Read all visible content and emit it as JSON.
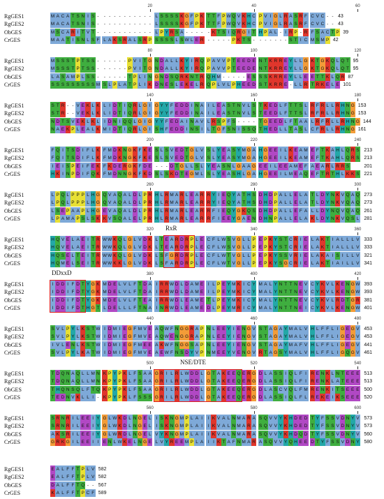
{
  "sequence_names": [
    "RgGES1",
    "RgGES2",
    "ObGES",
    "CrGES"
  ],
  "blocks": [
    {
      "ruler": [
        "20",
        "40",
        "60"
      ],
      "rows": [
        "MACATSNIS-----------LSSSSKGFPKTTFPWQVKHCPVIGLRASRFCVC--",
        "MACATSNIS-----------LSSSSKGFPKTTFPWQVKHCPVIGLRASRFCVC--",
        "MSCARITVT-----------LPYRSA-----KTSIQRGITHPAL-IRP-RFSACTP",
        "MAATISNLSFLAKSRALSRPSSSSLSWLER-----PKTS-------STICMSMP"
      ],
      "ends": [
        "43",
        "43",
        "39",
        "42"
      ]
    },
    {
      "ruler": [
        "80",
        "100",
        "120"
      ],
      "rows": [
        "MSSSTPTSS------PVITGNDALLKYIRQPAVVPTEEDENTKRREYLLGKTGKQLQT",
        "MSSSTPTSS------PVITGNDALLKYIRQPAVVPTEEDENTKRREYLLGKTGKQLQT",
        "LASAMPLSS------TPLINGNDSQRKNTRQHM-----ESSSKRREYLLEETTKLQR",
        "SSSSSSSSSMSLPLATPLIKDNESLEKELRQPLVLPHEEDSTKRRE-LLRTRKELE"
      ],
      "ends": [
        "95",
        "95",
        "87",
        "101"
      ]
    },
    {
      "ruler": [
        "140",
        "160",
        "180"
      ],
      "rows": [
        "STR--VEKLKLIDTIQRLGIGYYFEDDINAILEASTNVLSTKEDLFTTSLRFRLLRHNG",
        "STR--VEKLKLIDTIQRLGIGYYFEDDINAILEASTNVLSTEEDLFTTSLRFRLLRHNG",
        "NDTSVEKLKLIDNIQQLGIGYYFEDAINAVLRSPFS----TGEEDLFTAALRFRLLRHNG",
        "NAEKPLEALKMIDTIQRLGISHFEDDINSILTGFSNISSQTHEDLLTASLCFRLLRHNG"
      ],
      "ends": [
        "153",
        "153",
        "144",
        "161"
      ]
    },
    {
      "ruler": [
        "200",
        "220",
        "240"
      ],
      "rows": [
        "FQITSDIFLKFMDKNGKFKESLSVEDTGLVSLYEASYMGAHGEEILKEAMEFTKAHLQRS",
        "FQITSDIFLKFMDKNGKFKESLSVEDTGLVSLYEASYMGAHGEEILKEAMEFTKAHLQRS",
        "IEISPEIFEKFKDERGKFDE---DTGLLSLYEASNLGAAGEEILEEAMEFAEARLRRS",
        "HKINPDIFQKFMDNNGKFKDSLSKDTEGMLSLYEASHLGAHGEEILMEAQEFTRTHLKKS"
      ],
      "ends": [
        "213",
        "213",
        "201",
        "221"
      ]
    },
    {
      "ruler": [
        "260",
        "280",
        "300"
      ],
      "rows": [
        "LPQLPPPLHGQVAQALDLPRHLRMARLEARRYIEQYATHSDHDPALLELATLDYNKVQAQ",
        "LPQLPPPLHGQVAQALDLPRHLRMARLEARRYIEQYATHSDHDPALLELATLDYNKVQAQ",
        "LSEPAAPLHGEVAQALDLPRHLRMARLEARRFIEQYGKQSDHDPALLEFALLDYNQVQAQ",
        "LPAMAPSLSKKVSQALELPRHLRMARLEARRFIEEYGAENDHNPALLELAKLDYNKVQSL"
      ],
      "ends": [
        "273",
        "273",
        "261",
        "281"
      ]
    },
    {
      "ruler": [
        "320",
        "340",
        "360"
      ],
      "rows": [
        "HQVELAEITRWWKQLGLVDKLTEARDRPLECFLWSVGLLPEPKYSTCRIELAKTIALLLV",
        "HQVELAEITRWWKQLGLVDKLTEARDRPLECFLWSVGLLPEPKYSTCRIELAKTIALLLV",
        "HQSELTEITRWWKQLGLVDKLSFGRDRPLECFLWTVGLLPEPKYSSVRIELAKAISILLV",
        "HQMELSEITRWWKKLGLVDKLSFARDRPLECFLWTVGLLPEPKYSGCRIELAKTIAILLV"
      ],
      "ends": [
        "333",
        "333",
        "321",
        "341"
      ]
    },
    {
      "ruler": [
        "380",
        "400",
        "420"
      ],
      "rows": [
        "IDDIFDTYGKMDELVLFTDAIRRWDLDAMEILPEYMKICYMALYNTTNEVCYKVLKENGW",
        "IDDIFDTYGKMDELVLFTDAIRRWDLDAMEILPEYMKICYMALYNTTNEVCYKVLKENGW",
        "IDDIFDTYGKMDELVLFTEAIRRWDLEAMETLPEYMKICYMALYNTTNEVCYKVLRDTGR",
        "IDDIFDTHGTLDELLLFTNAINRWDLEAMEDLPEYMRICYMALYNTTNEICYKVLKENGW"
      ],
      "ends": [
        "393",
        "393",
        "381",
        "401"
      ]
    },
    {
      "ruler": [
        "440",
        "460",
        "480"
      ],
      "rows": [
        "SVLPYLKSTWIDMIEGFMVEAQWFNGGRAPNLEEYIENGVSTAGAYMALVHLFFLIGEGV",
        "SVLPYLKSTWIDMIEGFMVEAQWENGGRAPNLEEYIENGVSTAGAYMALVHLFFLIGEGV",
        "IVLENLKSTWIDMIEGFMEEAKWFNGGSAPNLEEYIENGVSTAGAYMAFVHLFFLIGEGV",
        "SVLPYLKATWIDMIEGFMVEAEWFNSDYVPNMEEYVENGVRTAGSYMALVHLFFLIGQGV"
      ],
      "ends": [
        "453",
        "453",
        "441",
        "461"
      ]
    },
    {
      "ruler": [
        "500",
        "520",
        "540"
      ],
      "rows": [
        "TDQNAQLLMNKPYPKLFSAAGRILRLWDDLGTAKEEQERGDLASSIQLFIRENKLNTEEE",
        "TDQNAQLLMNKPYPKLFSAAGRILRLWDDLGTAKEEQERGDLASSIQLFIRENKLATEEE",
        "THQNSQLFTQKPYPKLFSAAGRILRLWDDLGTAKEEQERGDLASCVQLFMRENKITSEEE",
        "TEDNVKLLI-KPYPKLFSSSGRILRLWDDLGTAKEEQERGDLASSIQLFLREKEIKSEEE"
      ],
      "ends": [
        "513",
        "513",
        "500",
        "520"
      ]
    },
    {
      "ruler": [
        "560",
        "580",
        "600"
      ],
      "rows": [
        "SRNRILEEIYGLWKDLNGELISKNGMPLAIIKVALNMARASQVVYKHDEDTYFSSVDNYV",
        "SRNRILEEIYGLWKDLNGELISKNGMPLAIIKVALNMARASQVVYKHDEDTYFSSVDNYV",
        "AKSRILEEIYGLWRDLNGELVYKNGMPLAIIKVALNMARASQVVYKHDQDTYFSSVDNYV",
        "GRKGILEEIIENLWKELNGELVYREEMPLAIIKTAFNMARASQVVYQHEEDTYFSSVDNYV"
      ],
      "ends": [
        "573",
        "573",
        "560",
        "580"
      ]
    },
    {
      "ruler": [],
      "rows": [
        "EALFFTPLV",
        "EALFFTPLV",
        "DALFFTQ--",
        "KALFFTPCF"
      ],
      "ends": [
        "582",
        "582",
        "567",
        "589"
      ]
    }
  ],
  "motifs": [
    {
      "label": "RxR"
    },
    {
      "label": "DDxxD"
    },
    {
      "label": "NSE/DTE"
    }
  ],
  "residue_colors": {
    "A": "#7ea9d8",
    "I": "#7ea9d8",
    "L": "#7ea9d8",
    "M": "#7ea9d8",
    "F": "#7ea9d8",
    "W": "#7ea9d8",
    "V": "#7ea9d8",
    "C": "#7ea9d8",
    "K": "#e0362c",
    "R": "#e0362c",
    "E": "#b148c4",
    "D": "#b148c4",
    "N": "#3fae3f",
    "Q": "#3fae3f",
    "S": "#3fae3f",
    "T": "#3fae3f",
    "G": "#f39c38",
    "P": "#e8e034",
    "H": "#23a8a8",
    "Y": "#23a8a8"
  }
}
